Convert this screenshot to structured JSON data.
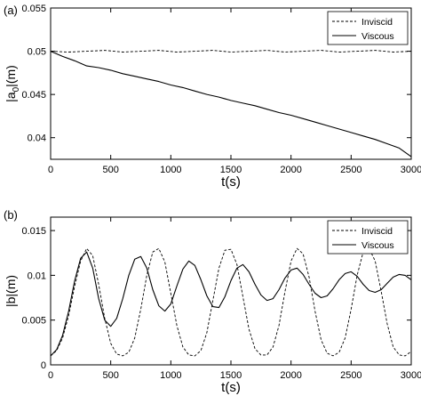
{
  "chart_data": [
    {
      "type": "line",
      "panel_label": "(a)",
      "xlabel": "t(s)",
      "ylabel": "|a0|(m)",
      "ylabel_main": "|a",
      "ylabel_sub": "0",
      "ylabel_tail": "|(m)",
      "xlim": [
        0,
        3000
      ],
      "ylim": [
        0.0375,
        0.055
      ],
      "xticks": [
        0,
        500,
        1000,
        1500,
        2000,
        2500,
        3000
      ],
      "xtick_labels": [
        "0",
        "500",
        "1000",
        "1500",
        "2000",
        "2500",
        "3000"
      ],
      "yticks": [
        0.04,
        0.045,
        0.05,
        0.055
      ],
      "ytick_labels": [
        "0.04",
        "0.045",
        "0.05",
        "0.055"
      ],
      "legend_position": "top-right",
      "grid": false,
      "series": [
        {
          "name": "Inviscid",
          "style": "dashed",
          "x": [
            0,
            150,
            300,
            450,
            600,
            750,
            900,
            1050,
            1200,
            1350,
            1500,
            1650,
            1800,
            1950,
            2100,
            2250,
            2400,
            2550,
            2700,
            2850,
            3000
          ],
          "y": [
            0.05,
            0.0499,
            0.05,
            0.0501,
            0.0499,
            0.05,
            0.0501,
            0.0499,
            0.05,
            0.0501,
            0.0499,
            0.05,
            0.0501,
            0.0499,
            0.05,
            0.0501,
            0.0499,
            0.05,
            0.0501,
            0.0499,
            0.05
          ]
        },
        {
          "name": "Viscous",
          "style": "solid",
          "x": [
            0,
            100,
            200,
            300,
            400,
            500,
            600,
            700,
            800,
            900,
            1000,
            1100,
            1200,
            1300,
            1400,
            1500,
            1600,
            1700,
            1800,
            1900,
            2000,
            2100,
            2200,
            2300,
            2400,
            2500,
            2600,
            2700,
            2800,
            2900,
            3000
          ],
          "y": [
            0.05,
            0.0494,
            0.0489,
            0.0483,
            0.0481,
            0.0478,
            0.0474,
            0.0471,
            0.0468,
            0.0465,
            0.0461,
            0.0458,
            0.0454,
            0.045,
            0.0447,
            0.0443,
            0.044,
            0.0437,
            0.0433,
            0.0429,
            0.0426,
            0.0422,
            0.0418,
            0.0414,
            0.041,
            0.0406,
            0.0402,
            0.0398,
            0.0393,
            0.0388,
            0.0378
          ]
        }
      ]
    },
    {
      "type": "line",
      "panel_label": "(b)",
      "xlabel": "t(s)",
      "ylabel": "|b|(m)",
      "xlim": [
        0,
        3000
      ],
      "ylim": [
        0,
        0.0165
      ],
      "xticks": [
        0,
        500,
        1000,
        1500,
        2000,
        2500,
        3000
      ],
      "xtick_labels": [
        "0",
        "500",
        "1000",
        "1500",
        "2000",
        "2500",
        "3000"
      ],
      "yticks": [
        0,
        0.005,
        0.01,
        0.015
      ],
      "ytick_labels": [
        "0",
        "0.005",
        "0.01",
        "0.015"
      ],
      "legend_position": "top-right",
      "grid": false,
      "series": [
        {
          "name": "Inviscid",
          "style": "dashed",
          "x": [
            0,
            50,
            100,
            150,
            200,
            250,
            300,
            350,
            400,
            450,
            500,
            550,
            600,
            650,
            700,
            750,
            800,
            850,
            900,
            950,
            1000,
            1050,
            1100,
            1150,
            1200,
            1250,
            1300,
            1350,
            1400,
            1450,
            1500,
            1550,
            1600,
            1650,
            1700,
            1750,
            1800,
            1850,
            1900,
            1950,
            2000,
            2050,
            2100,
            2150,
            2200,
            2250,
            2300,
            2350,
            2400,
            2450,
            2500,
            2550,
            2600,
            2650,
            2700,
            2750,
            2800,
            2850,
            2900,
            2950,
            3000
          ],
          "y": [
            0.001,
            0.0016,
            0.003,
            0.0055,
            0.0088,
            0.0116,
            0.013,
            0.0122,
            0.009,
            0.0052,
            0.0024,
            0.0012,
            0.001,
            0.0014,
            0.003,
            0.0062,
            0.01,
            0.0126,
            0.013,
            0.0115,
            0.008,
            0.0044,
            0.002,
            0.0011,
            0.001,
            0.0016,
            0.0036,
            0.0072,
            0.0108,
            0.0128,
            0.0129,
            0.0112,
            0.0076,
            0.004,
            0.0018,
            0.0011,
            0.0011,
            0.002,
            0.0044,
            0.0082,
            0.0116,
            0.013,
            0.0124,
            0.0098,
            0.006,
            0.0028,
            0.0013,
            0.001,
            0.0014,
            0.003,
            0.0062,
            0.01,
            0.0126,
            0.013,
            0.0116,
            0.0082,
            0.0046,
            0.002,
            0.0011,
            0.001,
            0.0015
          ]
        },
        {
          "name": "Viscous",
          "style": "solid",
          "x": [
            0,
            50,
            100,
            150,
            200,
            250,
            300,
            350,
            400,
            450,
            500,
            550,
            600,
            650,
            700,
            750,
            800,
            850,
            900,
            950,
            1000,
            1050,
            1100,
            1150,
            1200,
            1250,
            1300,
            1350,
            1400,
            1450,
            1500,
            1550,
            1600,
            1650,
            1700,
            1750,
            1800,
            1850,
            1900,
            1950,
            2000,
            2050,
            2100,
            2150,
            2200,
            2250,
            2300,
            2350,
            2400,
            2450,
            2500,
            2550,
            2600,
            2650,
            2700,
            2750,
            2800,
            2850,
            2900,
            2950,
            3000
          ],
          "y": [
            0.001,
            0.0017,
            0.0033,
            0.006,
            0.0094,
            0.0119,
            0.0126,
            0.0108,
            0.0074,
            0.005,
            0.0043,
            0.0052,
            0.0074,
            0.01,
            0.0118,
            0.0121,
            0.0108,
            0.0084,
            0.0066,
            0.006,
            0.0068,
            0.0088,
            0.0107,
            0.0116,
            0.0111,
            0.0095,
            0.0077,
            0.0065,
            0.0064,
            0.0076,
            0.0094,
            0.0108,
            0.0112,
            0.0104,
            0.009,
            0.0078,
            0.0072,
            0.0074,
            0.0084,
            0.0097,
            0.0106,
            0.0108,
            0.0101,
            0.009,
            0.008,
            0.0075,
            0.0077,
            0.0085,
            0.0095,
            0.0102,
            0.0104,
            0.0099,
            0.009,
            0.0083,
            0.0081,
            0.0084,
            0.0091,
            0.0098,
            0.0101,
            0.01,
            0.0095
          ]
        }
      ]
    }
  ]
}
